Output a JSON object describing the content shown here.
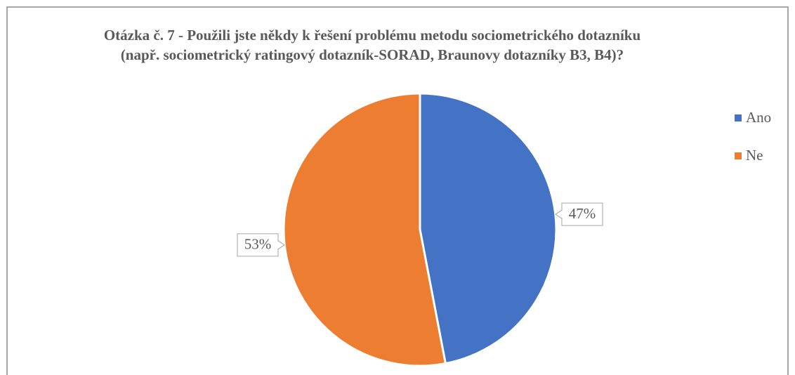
{
  "chart_data": {
    "type": "pie",
    "title": "Otázka č. 7 - Použili jste někdy k řešení problému metodu sociometrického dotazníku (např. sociometrický ratingový dotazník-SORAD, Braunovy dotazníky B3, B4)?",
    "categories": [
      "Ano",
      "Ne"
    ],
    "values": [
      47,
      53
    ],
    "value_labels": [
      "47%",
      "53%"
    ],
    "colors": [
      "#4472c4",
      "#ed7d31"
    ],
    "legend": "right"
  }
}
